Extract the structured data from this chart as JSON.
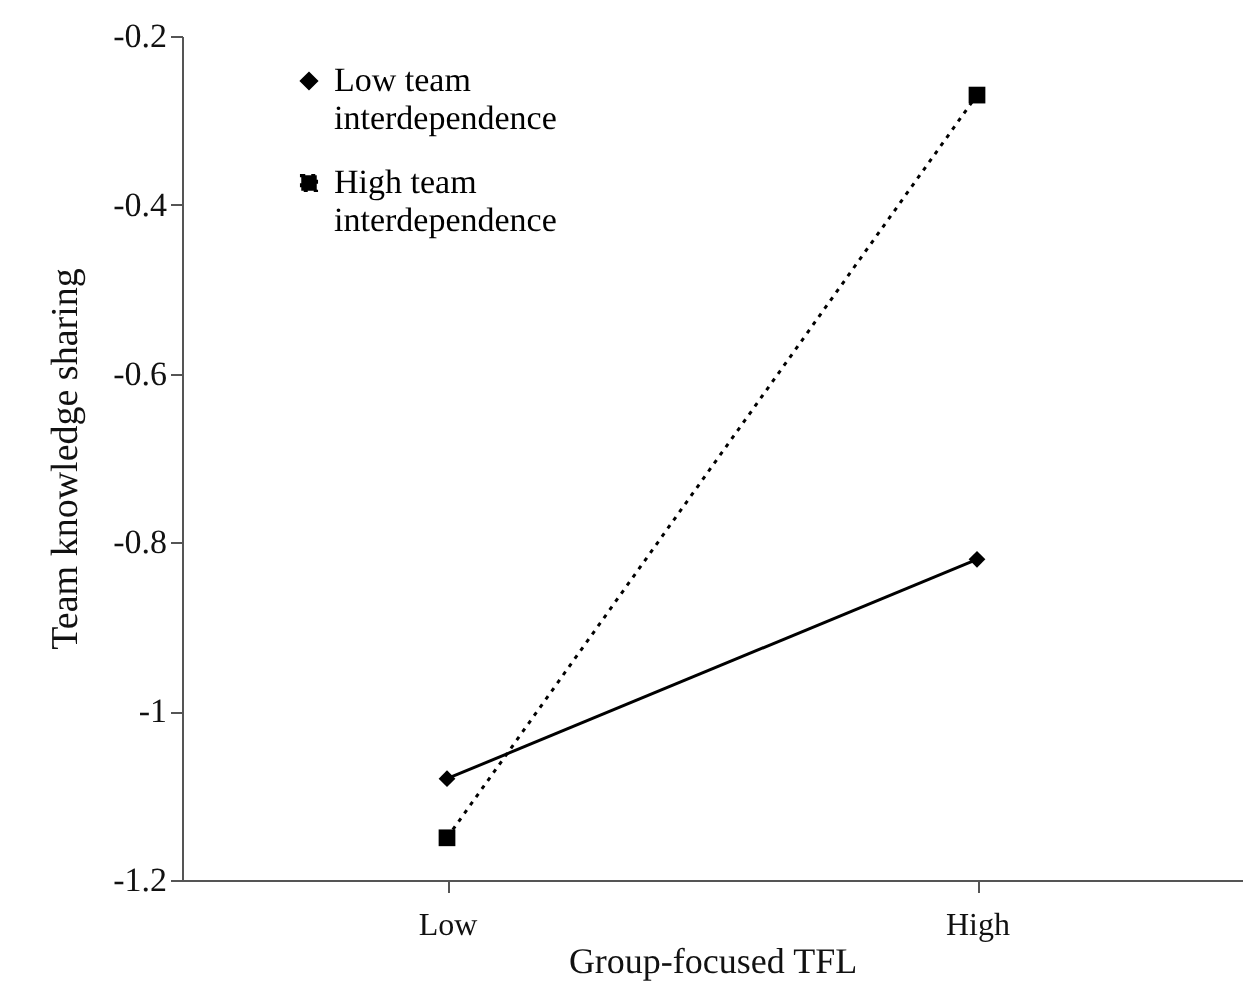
{
  "chart_data": {
    "type": "line",
    "xlabel": "Group-focused TFL",
    "ylabel": "Team knowledge sharing",
    "categories": [
      "Low",
      "High"
    ],
    "series": [
      {
        "name": "Low team interdependence",
        "color": "#000000",
        "marker": "diamond",
        "line_style": "solid",
        "values": [
          -1.08,
          -0.82
        ]
      },
      {
        "name": "High team interdependence",
        "color": "#000000",
        "marker": "square",
        "line_style": "dotted",
        "values": [
          -1.15,
          -0.27
        ]
      }
    ],
    "ylim": [
      -1.2,
      -0.2
    ],
    "yticks": [
      -1.2,
      -1,
      -0.8,
      -0.6,
      -0.4,
      -0.2
    ],
    "grid": false,
    "legend": "top left"
  }
}
